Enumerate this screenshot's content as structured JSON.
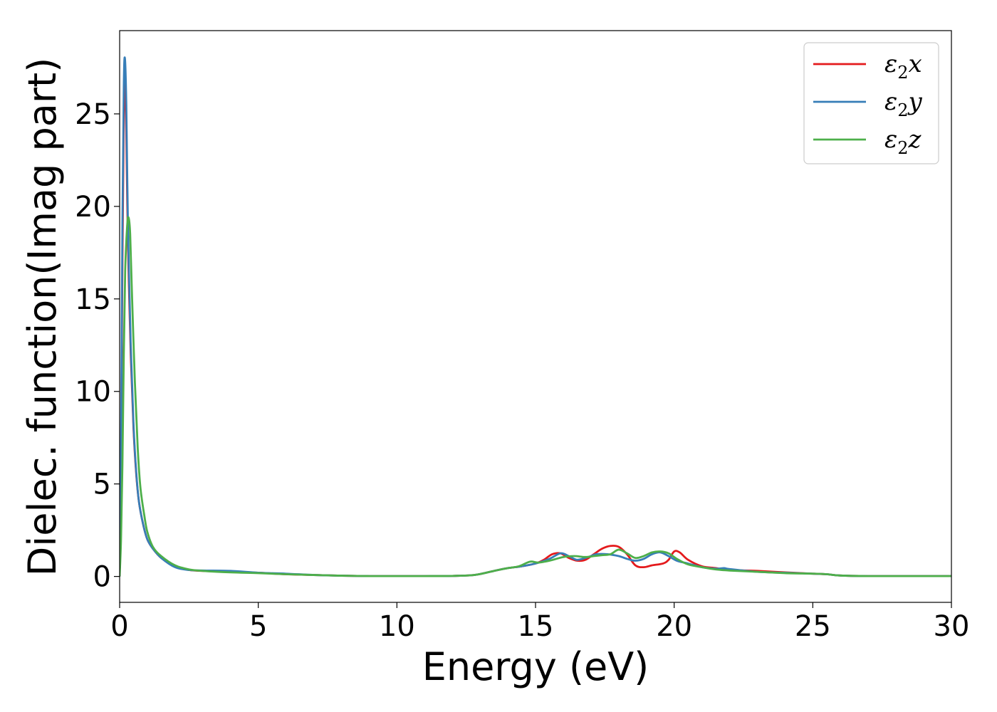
{
  "chart_data": {
    "type": "line",
    "title": "",
    "xlabel": "Energy (eV)",
    "ylabel": "Dielec. function(Imag part)",
    "xlim": [
      0,
      30
    ],
    "ylim": [
      -1.4,
      29.5
    ],
    "xticks": [
      0,
      5,
      10,
      15,
      20,
      25,
      30
    ],
    "yticks": [
      0,
      5,
      10,
      15,
      20,
      25
    ],
    "grid": false,
    "legend_position": "top-right",
    "series": [
      {
        "name": "ε₂x",
        "label_base": "ε",
        "label_sub": "2",
        "label_var": "x",
        "color": "#e41a1c",
        "points": [
          [
            0,
            0
          ],
          [
            0.05,
            6
          ],
          [
            0.1,
            17
          ],
          [
            0.15,
            25
          ],
          [
            0.19,
            26.9
          ],
          [
            0.24,
            24
          ],
          [
            0.3,
            18
          ],
          [
            0.4,
            12
          ],
          [
            0.5,
            8
          ],
          [
            0.6,
            5.5
          ],
          [
            0.7,
            4
          ],
          [
            0.85,
            2.8
          ],
          [
            1.0,
            2.0
          ],
          [
            1.2,
            1.5
          ],
          [
            1.5,
            1.0
          ],
          [
            2.0,
            0.55
          ],
          [
            2.5,
            0.35
          ],
          [
            3.0,
            0.3
          ],
          [
            4.0,
            0.25
          ],
          [
            5.0,
            0.2
          ],
          [
            6.0,
            0.12
          ],
          [
            7.0,
            0.08
          ],
          [
            8.0,
            0.04
          ],
          [
            9.0,
            0.02
          ],
          [
            10.0,
            0.02
          ],
          [
            11.0,
            0.02
          ],
          [
            12.0,
            0.03
          ],
          [
            12.8,
            0.08
          ],
          [
            13.5,
            0.3
          ],
          [
            14.0,
            0.45
          ],
          [
            14.5,
            0.55
          ],
          [
            15.0,
            0.7
          ],
          [
            15.3,
            0.9
          ],
          [
            15.6,
            1.2
          ],
          [
            15.9,
            1.25
          ],
          [
            16.2,
            1.0
          ],
          [
            16.5,
            0.85
          ],
          [
            16.8,
            0.9
          ],
          [
            17.1,
            1.2
          ],
          [
            17.4,
            1.5
          ],
          [
            17.7,
            1.65
          ],
          [
            18.0,
            1.6
          ],
          [
            18.3,
            1.2
          ],
          [
            18.6,
            0.6
          ],
          [
            18.9,
            0.5
          ],
          [
            19.2,
            0.6
          ],
          [
            19.6,
            0.7
          ],
          [
            19.8,
            0.9
          ],
          [
            20.0,
            1.35
          ],
          [
            20.2,
            1.3
          ],
          [
            20.5,
            0.9
          ],
          [
            21.0,
            0.55
          ],
          [
            21.5,
            0.45
          ],
          [
            22.0,
            0.35
          ],
          [
            23.0,
            0.3
          ],
          [
            24.0,
            0.22
          ],
          [
            25.0,
            0.15
          ],
          [
            25.5,
            0.12
          ],
          [
            26.0,
            0.05
          ],
          [
            27.0,
            0.02
          ],
          [
            28.0,
            0.02
          ],
          [
            30.0,
            0.02
          ]
        ]
      },
      {
        "name": "ε₂y",
        "label_base": "ε",
        "label_sub": "2",
        "label_var": "y",
        "color": "#377eb8",
        "points": [
          [
            0,
            0
          ],
          [
            0.05,
            7
          ],
          [
            0.1,
            19
          ],
          [
            0.15,
            26.5
          ],
          [
            0.19,
            28
          ],
          [
            0.24,
            25.5
          ],
          [
            0.3,
            19
          ],
          [
            0.4,
            12.5
          ],
          [
            0.5,
            8.2
          ],
          [
            0.6,
            5.6
          ],
          [
            0.7,
            4
          ],
          [
            0.85,
            2.8
          ],
          [
            1.0,
            2.0
          ],
          [
            1.2,
            1.5
          ],
          [
            1.5,
            1.0
          ],
          [
            2.0,
            0.5
          ],
          [
            2.5,
            0.35
          ],
          [
            3.0,
            0.32
          ],
          [
            4.0,
            0.3
          ],
          [
            5.0,
            0.2
          ],
          [
            6.0,
            0.15
          ],
          [
            7.0,
            0.08
          ],
          [
            8.0,
            0.04
          ],
          [
            9.0,
            0.02
          ],
          [
            10.0,
            0.02
          ],
          [
            11.0,
            0.02
          ],
          [
            12.0,
            0.03
          ],
          [
            12.8,
            0.08
          ],
          [
            13.5,
            0.3
          ],
          [
            14.0,
            0.45
          ],
          [
            14.5,
            0.55
          ],
          [
            15.0,
            0.7
          ],
          [
            15.5,
            0.95
          ],
          [
            15.9,
            1.25
          ],
          [
            16.2,
            1.1
          ],
          [
            16.5,
            0.9
          ],
          [
            16.9,
            1.05
          ],
          [
            17.2,
            1.2
          ],
          [
            17.6,
            1.2
          ],
          [
            18.0,
            1.1
          ],
          [
            18.3,
            0.95
          ],
          [
            18.6,
            0.85
          ],
          [
            18.9,
            0.95
          ],
          [
            19.2,
            1.2
          ],
          [
            19.5,
            1.3
          ],
          [
            19.8,
            1.1
          ],
          [
            20.1,
            0.85
          ],
          [
            20.5,
            0.7
          ],
          [
            21.0,
            0.5
          ],
          [
            21.5,
            0.42
          ],
          [
            21.8,
            0.45
          ],
          [
            22.0,
            0.4
          ],
          [
            23.0,
            0.25
          ],
          [
            24.0,
            0.2
          ],
          [
            25.0,
            0.15
          ],
          [
            25.5,
            0.12
          ],
          [
            26.0,
            0.05
          ],
          [
            27.0,
            0.02
          ],
          [
            28.0,
            0.02
          ],
          [
            30.0,
            0.02
          ]
        ]
      },
      {
        "name": "ε₂z",
        "label_base": "ε",
        "label_sub": "2",
        "label_var": "z",
        "color": "#4daf4a",
        "points": [
          [
            0,
            0
          ],
          [
            0.05,
            2
          ],
          [
            0.1,
            6
          ],
          [
            0.15,
            12
          ],
          [
            0.2,
            16.5
          ],
          [
            0.27,
            18.9
          ],
          [
            0.32,
            19.4
          ],
          [
            0.38,
            18.5
          ],
          [
            0.45,
            15
          ],
          [
            0.55,
            10.5
          ],
          [
            0.65,
            7
          ],
          [
            0.75,
            4.8
          ],
          [
            0.9,
            3.2
          ],
          [
            1.0,
            2.4
          ],
          [
            1.2,
            1.6
          ],
          [
            1.5,
            1.1
          ],
          [
            2.0,
            0.6
          ],
          [
            2.5,
            0.38
          ],
          [
            3.0,
            0.3
          ],
          [
            4.0,
            0.22
          ],
          [
            5.0,
            0.18
          ],
          [
            6.0,
            0.12
          ],
          [
            7.0,
            0.08
          ],
          [
            8.0,
            0.04
          ],
          [
            9.0,
            0.02
          ],
          [
            10.0,
            0.02
          ],
          [
            11.0,
            0.02
          ],
          [
            12.0,
            0.03
          ],
          [
            12.8,
            0.08
          ],
          [
            13.5,
            0.3
          ],
          [
            14.0,
            0.45
          ],
          [
            14.4,
            0.55
          ],
          [
            14.8,
            0.8
          ],
          [
            15.1,
            0.75
          ],
          [
            15.5,
            0.85
          ],
          [
            16.0,
            1.05
          ],
          [
            16.4,
            1.1
          ],
          [
            16.8,
            1.05
          ],
          [
            17.1,
            1.1
          ],
          [
            17.4,
            1.15
          ],
          [
            17.7,
            1.2
          ],
          [
            18.0,
            1.45
          ],
          [
            18.3,
            1.25
          ],
          [
            18.6,
            1.0
          ],
          [
            18.9,
            1.1
          ],
          [
            19.2,
            1.3
          ],
          [
            19.5,
            1.35
          ],
          [
            19.8,
            1.25
          ],
          [
            20.1,
            0.95
          ],
          [
            20.5,
            0.65
          ],
          [
            21.0,
            0.5
          ],
          [
            21.5,
            0.38
          ],
          [
            22.0,
            0.32
          ],
          [
            23.0,
            0.25
          ],
          [
            24.0,
            0.18
          ],
          [
            25.0,
            0.15
          ],
          [
            25.5,
            0.12
          ],
          [
            26.0,
            0.05
          ],
          [
            27.0,
            0.02
          ],
          [
            28.0,
            0.02
          ],
          [
            30.0,
            0.02
          ]
        ]
      }
    ]
  }
}
